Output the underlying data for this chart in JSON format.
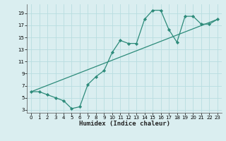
{
  "line1_x": [
    0,
    1,
    2,
    3,
    4,
    5,
    6,
    7,
    8,
    9,
    10,
    11,
    12,
    13,
    14,
    15,
    16,
    17,
    18,
    19,
    20,
    21,
    22,
    23
  ],
  "line1_y": [
    6,
    6,
    5.5,
    5,
    4.5,
    3.2,
    3.5,
    7.2,
    8.5,
    9.5,
    12.5,
    14.5,
    14,
    14,
    18,
    19.5,
    19.5,
    16.3,
    14.2,
    18.5,
    18.5,
    17.2,
    17.2,
    18
  ],
  "line2_x": [
    0,
    23
  ],
  "line2_y": [
    6.0,
    18.0
  ],
  "color": "#2d8b7a",
  "bg_color": "#daeef0",
  "grid_color": "#b8dde0",
  "xlabel": "Humidex (Indice chaleur)",
  "xlim": [
    -0.5,
    23.5
  ],
  "ylim": [
    2.5,
    20.5
  ],
  "xticks": [
    0,
    1,
    2,
    3,
    4,
    5,
    6,
    7,
    8,
    9,
    10,
    11,
    12,
    13,
    14,
    15,
    16,
    17,
    18,
    19,
    20,
    21,
    22,
    23
  ],
  "yticks": [
    3,
    5,
    7,
    9,
    11,
    13,
    15,
    17,
    19
  ],
  "marker": "D",
  "marker_size": 2.2,
  "line_width": 0.9,
  "tick_fontsize": 5.0,
  "xlabel_fontsize": 6.5,
  "xlabel_fontweight": "bold"
}
